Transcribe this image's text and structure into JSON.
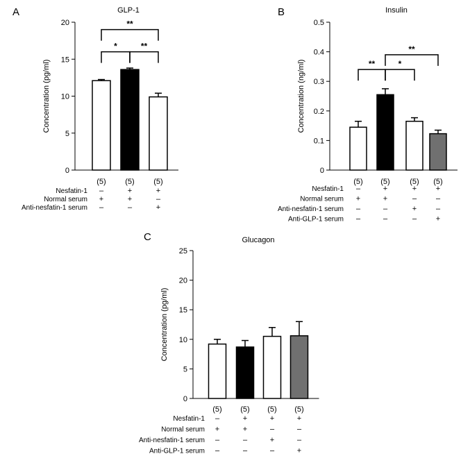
{
  "chart_data": [
    {
      "panel": "A",
      "type": "bar",
      "title": "GLP-1",
      "ylabel": "Concentration (pg/ml)",
      "ylim": [
        0,
        20
      ],
      "yticks": [
        "0",
        "5",
        "10",
        "15",
        "20"
      ],
      "categories": [
        "1",
        "2",
        "3"
      ],
      "values": [
        12.1,
        13.6,
        9.9
      ],
      "errors": [
        0.15,
        0.2,
        0.5
      ],
      "colors": [
        "#ffffff",
        "#000000",
        "#ffffff"
      ],
      "n_labels": [
        "(5)",
        "(5)",
        "(5)"
      ],
      "conditions": [
        {
          "name": "Nesfatin-1",
          "signs": [
            "–",
            "+",
            "+"
          ]
        },
        {
          "name": "Normal serum",
          "signs": [
            "+",
            "+",
            "–"
          ]
        },
        {
          "name": "Anti-nesfatin-1 serum",
          "signs": [
            "–",
            "–",
            "+"
          ]
        }
      ],
      "significance": [
        {
          "from": 0,
          "to": 1,
          "label": "*",
          "y": 16
        },
        {
          "from": 1,
          "to": 2,
          "label": "**",
          "y": 16
        },
        {
          "from": 0,
          "to": 2,
          "label": "**",
          "y": 19
        }
      ]
    },
    {
      "panel": "B",
      "type": "bar",
      "title": "Insulin",
      "ylabel": "Concentration (ng/ml)",
      "ylim": [
        0,
        0.5
      ],
      "yticks": [
        "0",
        "0.1",
        "0.2",
        "0.3",
        "0.4",
        "0.5"
      ],
      "categories": [
        "1",
        "2",
        "3",
        "4"
      ],
      "values": [
        0.145,
        0.255,
        0.165,
        0.123
      ],
      "errors": [
        0.02,
        0.02,
        0.012,
        0.012
      ],
      "colors": [
        "#ffffff",
        "#000000",
        "#ffffff",
        "#707070"
      ],
      "n_labels": [
        "(5)",
        "(5)",
        "(5)",
        "(5)"
      ],
      "conditions": [
        {
          "name": "Nesfatin-1",
          "signs": [
            "–",
            "+",
            "+",
            "+"
          ]
        },
        {
          "name": "Normal serum",
          "signs": [
            "+",
            "+",
            "–",
            "–"
          ]
        },
        {
          "name": "Anti-nesfatin-1 serum",
          "signs": [
            "–",
            "–",
            "+",
            "–"
          ]
        },
        {
          "name": "Anti-GLP-1 serum",
          "signs": [
            "–",
            "–",
            "–",
            "+"
          ]
        }
      ],
      "significance": [
        {
          "from": 0,
          "to": 1,
          "label": "**",
          "y": 0.34
        },
        {
          "from": 1,
          "to": 2,
          "label": "*",
          "y": 0.34
        },
        {
          "from": 1,
          "to": 3,
          "label": "**",
          "y": 0.39
        }
      ]
    },
    {
      "panel": "C",
      "type": "bar",
      "title": "Glucagon",
      "ylabel": "Concentration (pg/ml)",
      "ylim": [
        0,
        25
      ],
      "yticks": [
        "0",
        "5",
        "10",
        "15",
        "20",
        "25"
      ],
      "categories": [
        "1",
        "2",
        "3",
        "4"
      ],
      "values": [
        9.2,
        8.7,
        10.5,
        10.6
      ],
      "errors": [
        0.8,
        1.1,
        1.5,
        2.4
      ],
      "colors": [
        "#ffffff",
        "#000000",
        "#ffffff",
        "#707070"
      ],
      "n_labels": [
        "(5)",
        "(5)",
        "(5)",
        "(5)"
      ],
      "conditions": [
        {
          "name": "Nesfatin-1",
          "signs": [
            "–",
            "+",
            "+",
            "+"
          ]
        },
        {
          "name": "Normal serum",
          "signs": [
            "+",
            "+",
            "–",
            "–"
          ]
        },
        {
          "name": "Anti-nesfatin-1 serum",
          "signs": [
            "–",
            "–",
            "+",
            "–"
          ]
        },
        {
          "name": "Anti-GLP-1 serum",
          "signs": [
            "–",
            "–",
            "–",
            "+"
          ]
        }
      ],
      "significance": []
    }
  ]
}
